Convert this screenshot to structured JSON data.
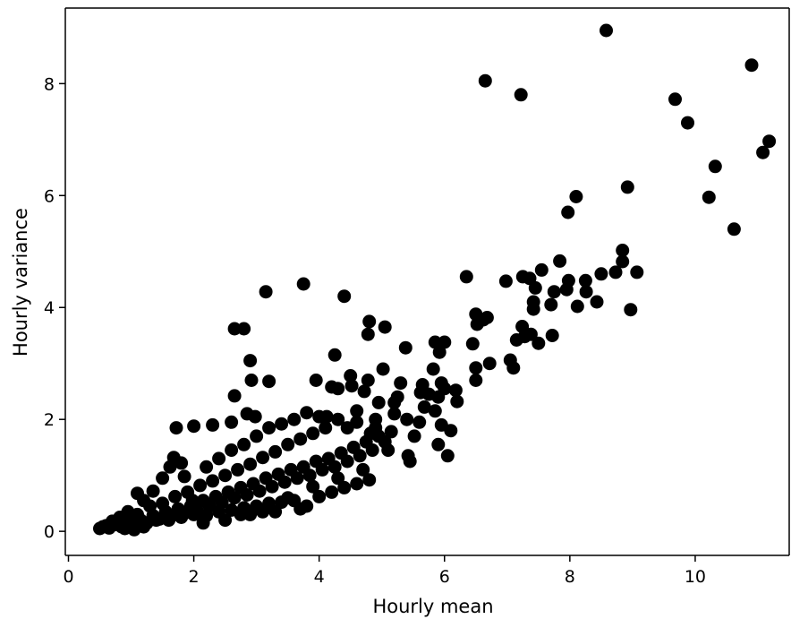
{
  "chart_data": {
    "type": "scatter",
    "title": "",
    "xlabel": "Hourly mean",
    "ylabel": "Hourly variance",
    "xlim": [
      -0.05,
      11.5
    ],
    "ylim": [
      -0.43,
      9.35
    ],
    "xticks": [
      0,
      2,
      4,
      6,
      8,
      10
    ],
    "yticks": [
      0,
      2,
      4,
      6,
      8
    ],
    "grid": false,
    "marker_color": "#000000",
    "points": [
      [
        8.58,
        8.95
      ],
      [
        10.9,
        8.33
      ],
      [
        6.65,
        8.05
      ],
      [
        7.22,
        7.8
      ],
      [
        9.68,
        7.72
      ],
      [
        9.88,
        7.3
      ],
      [
        11.18,
        6.97
      ],
      [
        11.08,
        6.77
      ],
      [
        10.32,
        6.52
      ],
      [
        10.22,
        5.97
      ],
      [
        10.62,
        5.4
      ],
      [
        8.92,
        6.15
      ],
      [
        8.1,
        5.98
      ],
      [
        7.97,
        5.7
      ],
      [
        8.84,
        5.02
      ],
      [
        8.84,
        4.82
      ],
      [
        9.07,
        4.63
      ],
      [
        8.73,
        4.63
      ],
      [
        8.5,
        4.6
      ],
      [
        8.43,
        4.1
      ],
      [
        8.97,
        3.96
      ],
      [
        8.25,
        4.48
      ],
      [
        8.12,
        4.02
      ],
      [
        8.26,
        4.28
      ],
      [
        7.98,
        4.48
      ],
      [
        7.84,
        4.83
      ],
      [
        7.95,
        4.32
      ],
      [
        7.7,
        4.05
      ],
      [
        7.75,
        4.28
      ],
      [
        7.55,
        4.67
      ],
      [
        7.45,
        4.35
      ],
      [
        7.42,
        4.1
      ],
      [
        7.42,
        3.97
      ],
      [
        7.36,
        4.52
      ],
      [
        7.25,
        4.55
      ],
      [
        7.72,
        3.5
      ],
      [
        7.5,
        3.36
      ],
      [
        7.38,
        3.52
      ],
      [
        7.24,
        3.66
      ],
      [
        7.15,
        3.42
      ],
      [
        7.28,
        3.48
      ],
      [
        7.05,
        3.06
      ],
      [
        7.1,
        2.92
      ],
      [
        6.98,
        4.47
      ],
      [
        6.35,
        4.55
      ],
      [
        6.5,
        3.88
      ],
      [
        6.62,
        3.78
      ],
      [
        6.52,
        3.7
      ],
      [
        6.68,
        3.82
      ],
      [
        6.45,
        3.35
      ],
      [
        6.72,
        3.0
      ],
      [
        6.5,
        2.92
      ],
      [
        6.5,
        2.7
      ],
      [
        6.18,
        2.52
      ],
      [
        6.2,
        2.32
      ],
      [
        6.0,
        2.55
      ],
      [
        6.1,
        1.8
      ],
      [
        5.95,
        1.9
      ],
      [
        6.05,
        1.35
      ],
      [
        5.9,
        1.55
      ],
      [
        5.85,
        2.15
      ],
      [
        5.9,
        2.4
      ],
      [
        5.92,
        3.2
      ],
      [
        6.0,
        3.38
      ],
      [
        5.85,
        3.38
      ],
      [
        5.82,
        2.9
      ],
      [
        5.95,
        2.65
      ],
      [
        5.75,
        2.45
      ],
      [
        5.68,
        2.22
      ],
      [
        5.65,
        2.62
      ],
      [
        5.62,
        2.48
      ],
      [
        5.6,
        1.95
      ],
      [
        5.52,
        1.7
      ],
      [
        5.45,
        1.25
      ],
      [
        5.42,
        1.35
      ],
      [
        5.38,
        3.28
      ],
      [
        5.3,
        2.65
      ],
      [
        5.25,
        2.4
      ],
      [
        5.2,
        2.1
      ],
      [
        5.15,
        1.78
      ],
      [
        5.1,
        1.45
      ],
      [
        5.05,
        3.65
      ],
      [
        5.02,
        2.9
      ],
      [
        4.95,
        2.3
      ],
      [
        4.9,
        2.0
      ],
      [
        4.82,
        1.75
      ],
      [
        4.78,
        2.7
      ],
      [
        4.8,
        3.75
      ],
      [
        4.78,
        3.52
      ],
      [
        4.72,
        2.5
      ],
      [
        4.6,
        2.15
      ],
      [
        4.52,
        2.6
      ],
      [
        4.5,
        2.78
      ],
      [
        4.45,
        1.85
      ],
      [
        4.4,
        4.2
      ],
      [
        4.3,
        2.55
      ],
      [
        4.25,
        3.15
      ],
      [
        4.2,
        2.58
      ],
      [
        4.12,
        2.05
      ],
      [
        3.95,
        2.7
      ],
      [
        3.75,
        4.42
      ],
      [
        3.15,
        4.28
      ],
      [
        2.8,
        3.62
      ],
      [
        2.65,
        3.62
      ],
      [
        2.9,
        3.05
      ],
      [
        3.2,
        2.68
      ],
      [
        2.92,
        2.7
      ],
      [
        2.65,
        2.42
      ],
      [
        2.85,
        2.1
      ],
      [
        2.98,
        2.05
      ],
      [
        2.6,
        1.95
      ],
      [
        2.3,
        1.9
      ],
      [
        2.0,
        1.88
      ],
      [
        1.72,
        1.85
      ],
      [
        1.68,
        1.32
      ],
      [
        1.8,
        1.22
      ],
      [
        1.62,
        1.15
      ],
      [
        1.85,
        0.98
      ],
      [
        1.98,
        0.55
      ],
      [
        1.5,
        0.95
      ],
      [
        1.35,
        0.72
      ],
      [
        1.2,
        0.55
      ],
      [
        1.1,
        0.68
      ],
      [
        0.95,
        0.35
      ],
      [
        0.82,
        0.25
      ],
      [
        0.7,
        0.18
      ],
      [
        0.6,
        0.1
      ],
      [
        0.5,
        0.05
      ],
      [
        0.55,
        0.08
      ],
      [
        0.65,
        0.06
      ],
      [
        0.75,
        0.12
      ],
      [
        0.85,
        0.08
      ],
      [
        0.95,
        0.15
      ],
      [
        1.05,
        0.1
      ],
      [
        1.15,
        0.2
      ],
      [
        1.25,
        0.15
      ],
      [
        1.35,
        0.28
      ],
      [
        1.45,
        0.22
      ],
      [
        1.55,
        0.35
      ],
      [
        1.65,
        0.28
      ],
      [
        1.75,
        0.4
      ],
      [
        1.85,
        0.32
      ],
      [
        1.95,
        0.45
      ],
      [
        2.05,
        0.38
      ],
      [
        2.15,
        0.55
      ],
      [
        2.25,
        0.45
      ],
      [
        2.35,
        0.62
      ],
      [
        2.45,
        0.52
      ],
      [
        2.55,
        0.7
      ],
      [
        2.65,
        0.6
      ],
      [
        2.75,
        0.78
      ],
      [
        2.85,
        0.65
      ],
      [
        2.95,
        0.85
      ],
      [
        3.05,
        0.72
      ],
      [
        3.15,
        0.95
      ],
      [
        3.25,
        0.8
      ],
      [
        3.35,
        1.02
      ],
      [
        3.45,
        0.88
      ],
      [
        3.55,
        1.1
      ],
      [
        3.65,
        0.95
      ],
      [
        3.75,
        1.15
      ],
      [
        3.85,
        1.0
      ],
      [
        3.95,
        1.25
      ],
      [
        4.05,
        1.1
      ],
      [
        4.15,
        1.3
      ],
      [
        4.25,
        1.15
      ],
      [
        4.35,
        1.4
      ],
      [
        4.45,
        1.25
      ],
      [
        4.55,
        1.5
      ],
      [
        4.65,
        1.35
      ],
      [
        4.75,
        1.6
      ],
      [
        4.85,
        1.45
      ],
      [
        4.95,
        1.7
      ],
      [
        5.05,
        1.6
      ],
      [
        1.1,
        0.3
      ],
      [
        1.3,
        0.45
      ],
      [
        1.5,
        0.5
      ],
      [
        1.7,
        0.62
      ],
      [
        1.9,
        0.7
      ],
      [
        2.1,
        0.82
      ],
      [
        2.3,
        0.9
      ],
      [
        2.5,
        1.0
      ],
      [
        2.7,
        1.1
      ],
      [
        2.9,
        1.2
      ],
      [
        3.1,
        1.32
      ],
      [
        3.3,
        1.42
      ],
      [
        3.5,
        1.55
      ],
      [
        3.7,
        1.65
      ],
      [
        3.9,
        1.75
      ],
      [
        4.1,
        1.85
      ],
      [
        2.2,
        1.15
      ],
      [
        2.4,
        1.3
      ],
      [
        2.6,
        1.45
      ],
      [
        2.8,
        1.55
      ],
      [
        3.0,
        1.7
      ],
      [
        3.2,
        1.85
      ],
      [
        3.4,
        1.92
      ],
      [
        3.6,
        2.0
      ],
      [
        3.8,
        2.12
      ],
      [
        4.0,
        2.05
      ],
      [
        4.3,
        2.0
      ],
      [
        4.6,
        1.95
      ],
      [
        4.9,
        1.85
      ],
      [
        5.2,
        2.3
      ],
      [
        5.4,
        2.0
      ],
      [
        1.4,
        0.2
      ],
      [
        1.6,
        0.2
      ],
      [
        1.8,
        0.25
      ],
      [
        2.0,
        0.3
      ],
      [
        2.2,
        0.28
      ],
      [
        2.4,
        0.35
      ],
      [
        2.6,
        0.38
      ],
      [
        2.8,
        0.42
      ],
      [
        3.0,
        0.45
      ],
      [
        3.2,
        0.5
      ],
      [
        3.4,
        0.52
      ],
      [
        3.6,
        0.55
      ],
      [
        3.8,
        0.45
      ],
      [
        4.0,
        0.62
      ],
      [
        4.2,
        0.7
      ],
      [
        4.4,
        0.78
      ],
      [
        4.6,
        0.85
      ],
      [
        4.8,
        0.92
      ],
      [
        2.15,
        0.15
      ],
      [
        2.5,
        0.2
      ],
      [
        2.9,
        0.3
      ],
      [
        3.3,
        0.35
      ],
      [
        3.7,
        0.4
      ],
      [
        1.2,
        0.08
      ],
      [
        0.9,
        0.05
      ],
      [
        1.05,
        0.03
      ],
      [
        2.75,
        0.3
      ],
      [
        3.1,
        0.35
      ],
      [
        3.5,
        0.6
      ],
      [
        3.9,
        0.8
      ],
      [
        4.3,
        0.95
      ],
      [
        4.7,
        1.1
      ]
    ]
  }
}
